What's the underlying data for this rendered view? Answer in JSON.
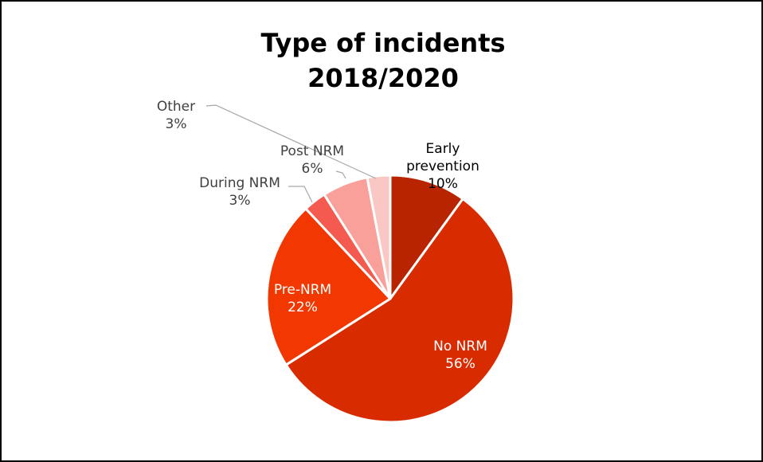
{
  "chart_data": {
    "type": "pie",
    "title_lines": [
      "Type of incidents",
      "2018/2020"
    ],
    "start_angle_deg": 0,
    "direction": "clockwise",
    "slices": [
      {
        "label": "Early prevention",
        "label_lines": [
          "Early",
          "prevention"
        ],
        "value": 10,
        "pct": "10%",
        "color": "#B82300"
      },
      {
        "label": "No NRM",
        "label_lines": [
          "No NRM"
        ],
        "value": 56,
        "pct": "56%",
        "color": "#D92B00"
      },
      {
        "label": "Pre-NRM",
        "label_lines": [
          "Pre-NRM"
        ],
        "value": 22,
        "pct": "22%",
        "color": "#F23800"
      },
      {
        "label": "During NRM",
        "label_lines": [
          "During NRM"
        ],
        "value": 3,
        "pct": "3%",
        "color": "#F55A50"
      },
      {
        "label": "Post NRM",
        "label_lines": [
          "Post NRM"
        ],
        "value": 6,
        "pct": "6%",
        "color": "#F9A09A"
      },
      {
        "label": "Other",
        "label_lines": [
          "Other"
        ],
        "value": 3,
        "pct": "3%",
        "color": "#FAC8C4"
      }
    ]
  }
}
